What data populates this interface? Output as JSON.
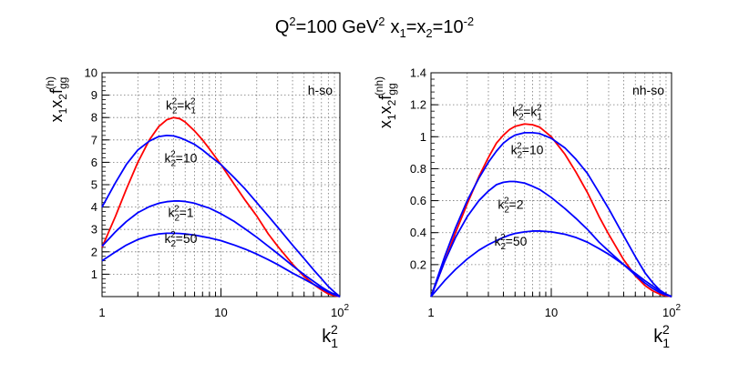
{
  "title": {
    "q_base": "Q",
    "q_exp": "2",
    "mid": "=100 GeV",
    "gev_exp": "2",
    "x1_base": "x",
    "x1_sub": "1",
    "eq": "=x",
    "x2_sub": "2",
    "eq2": "=10",
    "xval_exp": "-2"
  },
  "chart_data": [
    {
      "type": "line",
      "panel_label": "h-so",
      "ylabel": {
        "base": "x",
        "s1": "1",
        "mid": "x",
        "s2": "2",
        "f": "f",
        "sub": "gg",
        "sup": "(h)"
      },
      "xlabel": {
        "base": "k",
        "sub": "1",
        "sup": "2"
      },
      "xscale": "log",
      "xlim": [
        1,
        100
      ],
      "ylim": [
        0,
        10
      ],
      "x_ticks": [
        {
          "v": 1,
          "base": "1",
          "exp": ""
        },
        {
          "v": 10,
          "base": "10",
          "exp": ""
        },
        {
          "v": 100,
          "base": "10",
          "exp": "2"
        }
      ],
      "y_ticks": [
        "1",
        "2",
        "3",
        "4",
        "5",
        "6",
        "7",
        "8",
        "9",
        "10"
      ],
      "grid": true,
      "series": [
        {
          "color": "#ff0000",
          "x": [
            1.0,
            1.3,
            1.6,
            2.0,
            2.5,
            3.0,
            3.5,
            4.0,
            4.5,
            5.0,
            6.0,
            7.0,
            8.0,
            10.0,
            13.0,
            16.0,
            20.0,
            25.0,
            30.0,
            40.0,
            50.0,
            60.0,
            70.0,
            80.0,
            90.0,
            100.0
          ],
          "y": [
            2.2,
            3.6,
            4.8,
            6.0,
            7.0,
            7.6,
            7.9,
            8.0,
            7.95,
            7.8,
            7.4,
            7.0,
            6.6,
            5.9,
            5.0,
            4.3,
            3.6,
            2.8,
            2.25,
            1.45,
            0.9,
            0.55,
            0.3,
            0.12,
            0.04,
            0.0
          ],
          "label": {
            "base": "k",
            "s1": "2",
            "p1": "2",
            "eq": "=k",
            "s2": "1",
            "p2": "2"
          },
          "label_at": [
            4.6,
            8.35
          ]
        },
        {
          "color": "#0000ff",
          "x": [
            1.0,
            1.3,
            1.6,
            2.0,
            2.5,
            3.0,
            3.5,
            4.0,
            4.5,
            5.0,
            6.0,
            7.0,
            8.0,
            10.0,
            13.0,
            16.0,
            20.0,
            25.0,
            30.0,
            40.0,
            50.0,
            60.0,
            70.0,
            80.0,
            90.0,
            100.0
          ],
          "y": [
            4.0,
            5.1,
            5.9,
            6.55,
            6.95,
            7.15,
            7.2,
            7.18,
            7.1,
            7.0,
            6.8,
            6.55,
            6.3,
            5.9,
            5.3,
            4.8,
            4.2,
            3.6,
            3.1,
            2.3,
            1.7,
            1.2,
            0.8,
            0.45,
            0.2,
            0.0
          ],
          "label": {
            "base": "k",
            "s1": "2",
            "p1": "2",
            "eq": "=10"
          },
          "label_at": [
            4.6,
            6.0
          ]
        },
        {
          "color": "#0000ff",
          "x": [
            1.0,
            1.3,
            1.6,
            2.0,
            2.5,
            3.0,
            3.5,
            4.0,
            4.5,
            5.0,
            6.0,
            7.0,
            8.0,
            10.0,
            13.0,
            16.0,
            20.0,
            25.0,
            30.0,
            40.0,
            50.0,
            60.0,
            70.0,
            80.0,
            90.0,
            100.0
          ],
          "y": [
            2.25,
            2.9,
            3.35,
            3.75,
            4.02,
            4.17,
            4.24,
            4.27,
            4.27,
            4.25,
            4.17,
            4.05,
            3.95,
            3.7,
            3.35,
            3.02,
            2.65,
            2.25,
            1.92,
            1.38,
            0.98,
            0.68,
            0.43,
            0.24,
            0.1,
            0.0
          ],
          "label": {
            "base": "k",
            "s1": "2",
            "p1": "2",
            "eq": "=1"
          },
          "label_at": [
            4.6,
            3.55
          ]
        },
        {
          "color": "#0000ff",
          "x": [
            1.0,
            1.3,
            1.6,
            2.0,
            2.5,
            3.0,
            3.5,
            4.0,
            4.5,
            5.0,
            6.0,
            7.0,
            8.0,
            10.0,
            13.0,
            16.0,
            20.0,
            25.0,
            30.0,
            40.0,
            50.0,
            60.0,
            70.0,
            80.0,
            90.0,
            100.0
          ],
          "y": [
            1.6,
            2.0,
            2.3,
            2.55,
            2.72,
            2.8,
            2.83,
            2.83,
            2.82,
            2.8,
            2.75,
            2.68,
            2.62,
            2.5,
            2.3,
            2.12,
            1.9,
            1.65,
            1.43,
            1.05,
            0.78,
            0.55,
            0.36,
            0.2,
            0.08,
            0.0
          ],
          "label": {
            "base": "k",
            "s1": "2",
            "p1": "2",
            "eq": "=50"
          },
          "label_at": [
            4.6,
            2.4
          ]
        }
      ]
    },
    {
      "type": "line",
      "panel_label": "nh-so",
      "ylabel": {
        "base": "x",
        "s1": "1",
        "mid": "x",
        "s2": "2",
        "f": "f",
        "sub": "gg",
        "sup": "(nh)"
      },
      "xlabel": {
        "base": "k",
        "sub": "1",
        "sup": "2"
      },
      "xscale": "log",
      "xlim": [
        1,
        100
      ],
      "ylim": [
        0,
        1.4
      ],
      "x_ticks": [
        {
          "v": 1,
          "base": "1",
          "exp": ""
        },
        {
          "v": 10,
          "base": "10",
          "exp": ""
        },
        {
          "v": 100,
          "base": "10",
          "exp": "2"
        }
      ],
      "y_ticks": [
        "0.2",
        "0.4",
        "0.6",
        "0.8",
        "1",
        "1.2",
        "1.4"
      ],
      "grid": true,
      "series": [
        {
          "color": "#ff0000",
          "x": [
            1.0,
            1.3,
            1.6,
            2.0,
            2.5,
            3.0,
            3.5,
            4.0,
            4.5,
            5.0,
            6.0,
            7.0,
            8.0,
            10.0,
            13.0,
            16.0,
            20.0,
            25.0,
            30.0,
            40.0,
            50.0,
            60.0,
            70.0,
            80.0,
            90.0,
            100.0
          ],
          "y": [
            0.0,
            0.22,
            0.4,
            0.58,
            0.75,
            0.87,
            0.96,
            1.01,
            1.045,
            1.065,
            1.08,
            1.075,
            1.06,
            1.0,
            0.89,
            0.78,
            0.65,
            0.5,
            0.39,
            0.23,
            0.13,
            0.07,
            0.035,
            0.015,
            0.005,
            0.0
          ],
          "label": {
            "base": "k",
            "s1": "2",
            "p1": "2",
            "eq": "=k",
            "s2": "1",
            "p2": "2"
          },
          "label_at": [
            6.3,
            1.13
          ]
        },
        {
          "color": "#0000ff",
          "x": [
            1.0,
            1.3,
            1.6,
            2.0,
            2.5,
            3.0,
            3.5,
            4.0,
            4.5,
            5.0,
            6.0,
            7.0,
            8.0,
            10.0,
            13.0,
            16.0,
            20.0,
            25.0,
            30.0,
            40.0,
            50.0,
            60.0,
            70.0,
            80.0,
            90.0,
            100.0
          ],
          "y": [
            0.0,
            0.25,
            0.43,
            0.6,
            0.74,
            0.84,
            0.91,
            0.96,
            0.99,
            1.01,
            1.025,
            1.025,
            1.02,
            0.99,
            0.93,
            0.86,
            0.77,
            0.65,
            0.55,
            0.38,
            0.25,
            0.15,
            0.085,
            0.04,
            0.015,
            0.0
          ],
          "label": {
            "base": "k",
            "s1": "2",
            "p1": "2",
            "eq": "=10"
          },
          "label_at": [
            6.3,
            0.89
          ]
        },
        {
          "color": "#0000ff",
          "x": [
            1.0,
            1.3,
            1.6,
            2.0,
            2.5,
            3.0,
            3.5,
            4.0,
            4.5,
            5.0,
            6.0,
            7.0,
            8.0,
            10.0,
            13.0,
            16.0,
            20.0,
            25.0,
            30.0,
            40.0,
            50.0,
            60.0,
            70.0,
            80.0,
            90.0,
            100.0
          ],
          "y": [
            0.0,
            0.22,
            0.37,
            0.5,
            0.6,
            0.66,
            0.7,
            0.715,
            0.72,
            0.72,
            0.71,
            0.69,
            0.67,
            0.62,
            0.55,
            0.49,
            0.42,
            0.34,
            0.285,
            0.2,
            0.135,
            0.085,
            0.05,
            0.025,
            0.01,
            0.0
          ],
          "label": {
            "base": "k",
            "s1": "2",
            "p1": "2",
            "eq": "=2"
          },
          "label_at": [
            4.6,
            0.55
          ]
        },
        {
          "color": "#0000ff",
          "x": [
            1.0,
            1.3,
            1.6,
            2.0,
            2.5,
            3.0,
            3.5,
            4.0,
            4.5,
            5.0,
            6.0,
            7.0,
            8.0,
            10.0,
            13.0,
            16.0,
            20.0,
            25.0,
            30.0,
            40.0,
            50.0,
            60.0,
            70.0,
            80.0,
            90.0,
            100.0
          ],
          "y": [
            0.0,
            0.1,
            0.17,
            0.235,
            0.29,
            0.325,
            0.35,
            0.37,
            0.385,
            0.395,
            0.405,
            0.41,
            0.41,
            0.405,
            0.39,
            0.37,
            0.34,
            0.3,
            0.265,
            0.2,
            0.145,
            0.1,
            0.065,
            0.035,
            0.015,
            0.0
          ],
          "label": {
            "base": "k",
            "s1": "2",
            "p1": "2",
            "eq": "=50"
          },
          "label_at": [
            4.6,
            0.32
          ]
        }
      ]
    }
  ]
}
